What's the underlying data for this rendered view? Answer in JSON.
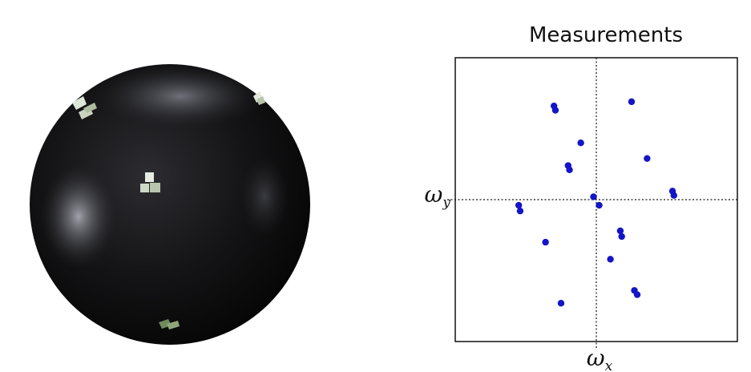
{
  "colors": {
    "sphere_dark": "#0e0e0e",
    "sphere_mid": "#2a2a2e",
    "sphere_highlight": "#9a9aa3",
    "patch_light": "#e8efe4",
    "patch_shade": "#9fb08f",
    "point": "#1414c8",
    "frame": "#111111"
  },
  "sphere": {
    "icons": [
      "sphere-icon",
      "cube-patch-icon"
    ]
  },
  "chart_data": {
    "type": "scatter",
    "title": "Measurements",
    "xlabel": "ω",
    "xlabel_sub": "x",
    "ylabel": "ω",
    "ylabel_sub": "y",
    "xlim": [
      -1,
      1
    ],
    "ylim": [
      -1,
      1
    ],
    "grid": false,
    "axes_lines": "dotted lines through origin",
    "series": [
      {
        "name": "measurements",
        "x": [
          -0.3,
          -0.29,
          0.25,
          -0.11,
          0.36,
          -0.2,
          -0.19,
          -0.02,
          0.54,
          0.55,
          -0.55,
          -0.54,
          0.02,
          0.17,
          0.18,
          -0.36,
          0.1,
          0.27,
          0.29,
          -0.25
        ],
        "y": [
          0.66,
          0.63,
          0.69,
          0.4,
          0.29,
          0.24,
          0.21,
          0.02,
          0.06,
          0.03,
          -0.04,
          -0.08,
          -0.04,
          -0.22,
          -0.26,
          -0.3,
          -0.42,
          -0.64,
          -0.67,
          -0.73
        ]
      }
    ]
  }
}
